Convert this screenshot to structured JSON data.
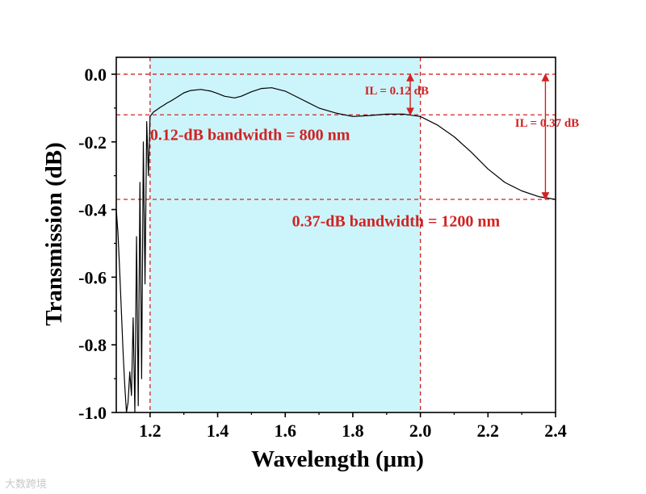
{
  "chart_data": {
    "type": "line",
    "xlabel": "Wavelength (μm)",
    "ylabel": "Transmission (dB)",
    "xlim": [
      1.1,
      2.4
    ],
    "ylim": [
      -1.0,
      0.05
    ],
    "xticks": [
      1.2,
      1.4,
      1.6,
      1.8,
      2.0,
      2.2,
      2.4
    ],
    "xtick_labels": [
      "1.2",
      "1.4",
      "1.6",
      "1.8",
      "2.0",
      "2.2",
      "2.4"
    ],
    "yticks": [
      0.0,
      -0.2,
      -0.4,
      -0.6,
      -0.8,
      -1.0
    ],
    "ytick_labels": [
      "0.0",
      "-0.2",
      "-0.4",
      "-0.6",
      "-0.8",
      "-1.0"
    ],
    "series": [
      {
        "name": "Transmission",
        "color": "#000000",
        "x": [
          1.1,
          1.105,
          1.11,
          1.115,
          1.12,
          1.125,
          1.13,
          1.135,
          1.14,
          1.145,
          1.15,
          1.155,
          1.16,
          1.165,
          1.17,
          1.175,
          1.18,
          1.185,
          1.19,
          1.195,
          1.2,
          1.21,
          1.22,
          1.23,
          1.24,
          1.25,
          1.26,
          1.28,
          1.3,
          1.32,
          1.35,
          1.38,
          1.4,
          1.42,
          1.45,
          1.47,
          1.5,
          1.53,
          1.56,
          1.6,
          1.65,
          1.7,
          1.75,
          1.8,
          1.85,
          1.9,
          1.95,
          2.0,
          2.05,
          2.1,
          2.15,
          2.2,
          2.25,
          2.3,
          2.35,
          2.4
        ],
        "y": [
          -0.4,
          -0.47,
          -0.58,
          -0.7,
          -0.82,
          -0.92,
          -1.0,
          -0.97,
          -0.88,
          -0.95,
          -0.72,
          -1.0,
          -0.48,
          -0.98,
          -0.32,
          -0.9,
          -0.2,
          -0.62,
          -0.14,
          -0.3,
          -0.125,
          -0.112,
          -0.105,
          -0.098,
          -0.092,
          -0.085,
          -0.08,
          -0.068,
          -0.055,
          -0.048,
          -0.045,
          -0.05,
          -0.057,
          -0.065,
          -0.07,
          -0.065,
          -0.052,
          -0.042,
          -0.04,
          -0.05,
          -0.075,
          -0.1,
          -0.115,
          -0.125,
          -0.122,
          -0.118,
          -0.118,
          -0.125,
          -0.15,
          -0.185,
          -0.23,
          -0.28,
          -0.32,
          -0.345,
          -0.362,
          -0.37
        ]
      }
    ],
    "shaded_region": {
      "x_from": 1.2,
      "x_to": 2.0,
      "color": "#ccf5fb"
    },
    "reference_lines": {
      "vertical_x": [
        1.2,
        2.0
      ],
      "horizontal_y": [
        0.0,
        -0.12,
        -0.37
      ],
      "color": "#d22222"
    },
    "arrows": [
      {
        "x": 1.97,
        "y_from": 0.0,
        "y_to": -0.12
      },
      {
        "x": 2.37,
        "y_from": 0.0,
        "y_to": -0.37
      }
    ],
    "annotations": [
      {
        "text": "IL = 0.12 dB",
        "x": 1.835,
        "y": -0.06,
        "style": "small"
      },
      {
        "text": "IL = 0.37 dB",
        "x": 2.28,
        "y": -0.155,
        "style": "small"
      },
      {
        "text": "0.12-dB bandwidth = 800 nm",
        "x": 1.2,
        "y": -0.195,
        "style": "big"
      },
      {
        "text": "0.37-dB bandwidth = 1200 nm",
        "x": 1.62,
        "y": -0.45,
        "style": "big"
      }
    ]
  },
  "watermark": "大数跨境"
}
